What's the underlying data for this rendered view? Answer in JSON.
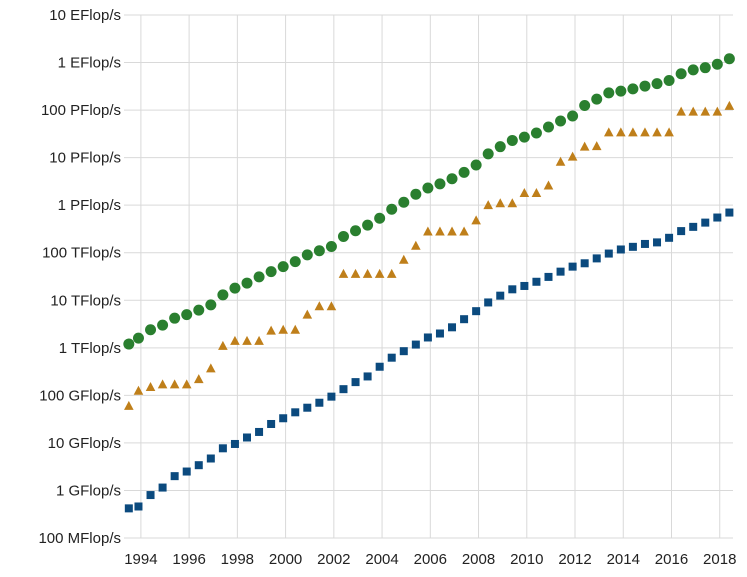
{
  "chart_data": {
    "type": "scatter",
    "title": "",
    "xlabel": "",
    "ylabel": "",
    "y_scale": "log",
    "y_unit": "Flop/s",
    "xlim": [
      1993.3,
      2018.55
    ],
    "ylim": [
      100000000.0,
      1e+19
    ],
    "grid": true,
    "legend": "none",
    "x_ticks": [
      1994,
      1996,
      1998,
      2000,
      2002,
      2004,
      2006,
      2008,
      2010,
      2012,
      2014,
      2016,
      2018
    ],
    "x_tick_labels": [
      "1994",
      "1996",
      "1998",
      "2000",
      "2002",
      "2004",
      "2006",
      "2008",
      "2010",
      "2012",
      "2014",
      "2016",
      "2018"
    ],
    "y_ticks": [
      100000000.0,
      1000000000.0,
      10000000000.0,
      100000000000.0,
      1000000000000.0,
      10000000000000.0,
      100000000000000.0,
      1000000000000000.0,
      1e+16,
      1e+17,
      1e+18,
      1e+19
    ],
    "y_tick_labels": [
      "100 MFlop/s",
      "1 GFlop/s",
      "10 GFlop/s",
      "100 GFlop/s",
      "1 TFlop/s",
      "10 TFlop/s",
      "100 TFlop/s",
      "1 PFlop/s",
      "10 PFlop/s",
      "100 PFlop/s",
      "1 EFlop/s",
      "10 EFlop/s"
    ],
    "series": [
      {
        "marker": "circle",
        "color": "#2a7f2f",
        "x": [
          1993.5,
          1993.9,
          1994.4,
          1994.9,
          1995.4,
          1995.9,
          1996.4,
          1996.9,
          1997.4,
          1997.9,
          1998.4,
          1998.9,
          1999.4,
          1999.9,
          2000.4,
          2000.9,
          2001.4,
          2001.9,
          2002.4,
          2002.9,
          2003.4,
          2003.9,
          2004.4,
          2004.9,
          2005.4,
          2005.9,
          2006.4,
          2006.9,
          2007.4,
          2007.9,
          2008.4,
          2008.9,
          2009.4,
          2009.9,
          2010.4,
          2010.9,
          2011.4,
          2011.9,
          2012.4,
          2012.9,
          2013.4,
          2013.9,
          2014.4,
          2014.9,
          2015.4,
          2015.9,
          2016.4,
          2016.9,
          2017.4,
          2017.9,
          2018.4
        ],
        "values": [
          1200000000000.0,
          1600000000000.0,
          2400000000000.0,
          3000000000000.0,
          4200000000000.0,
          5000000000000.0,
          6200000000000.0,
          8000000000000.0,
          13000000000000.0,
          18000000000000.0,
          23000000000000.0,
          31000000000000.0,
          40000000000000.0,
          51000000000000.0,
          65000000000000.0,
          90000000000000.0,
          110000000000000.0,
          135000000000000.0,
          220000000000000.0,
          290000000000000.0,
          380000000000000.0,
          530000000000000.0,
          820000000000000.0,
          1150000000000000.0,
          1700000000000000.0,
          2300000000000000.0,
          2800000000000000.0,
          3600000000000000.0,
          4900000000000000.0,
          7000000000000000.0,
          1.2e+16,
          1.7e+16,
          2.3e+16,
          2.7e+16,
          3.3e+16,
          4.4e+16,
          5.9e+16,
          7.5e+16,
          1.25e+17,
          1.7e+17,
          2.3e+17,
          2.5e+17,
          2.8e+17,
          3.2e+17,
          3.6e+17,
          4.2e+17,
          5.8e+17,
          7e+17,
          7.8e+17,
          9.2e+17,
          1.2e+18
        ]
      },
      {
        "marker": "triangle",
        "color": "#bf7f1a",
        "x": [
          1993.5,
          1993.9,
          1994.4,
          1994.9,
          1995.4,
          1995.9,
          1996.4,
          1996.9,
          1997.4,
          1997.9,
          1998.4,
          1998.9,
          1999.4,
          1999.9,
          2000.4,
          2000.9,
          2001.4,
          2001.9,
          2002.4,
          2002.9,
          2003.4,
          2003.9,
          2004.4,
          2004.9,
          2005.4,
          2005.9,
          2006.4,
          2006.9,
          2007.4,
          2007.9,
          2008.4,
          2008.9,
          2009.4,
          2009.9,
          2010.4,
          2010.9,
          2011.4,
          2011.9,
          2012.4,
          2012.9,
          2013.4,
          2013.9,
          2014.4,
          2014.9,
          2015.4,
          2015.9,
          2016.4,
          2016.9,
          2017.4,
          2017.9,
          2018.4
        ],
        "values": [
          60000000000.0,
          125000000000.0,
          150000000000.0,
          170000000000.0,
          170000000000.0,
          170000000000.0,
          220000000000.0,
          370000000000.0,
          1100000000000.0,
          1400000000000.0,
          1400000000000.0,
          1400000000000.0,
          2300000000000.0,
          2400000000000.0,
          2400000000000.0,
          5000000000000.0,
          7500000000000.0,
          7500000000000.0,
          36000000000000.0,
          36000000000000.0,
          36000000000000.0,
          36000000000000.0,
          36000000000000.0,
          71000000000000.0,
          140000000000000.0,
          280000000000000.0,
          280000000000000.0,
          280000000000000.0,
          280000000000000.0,
          480000000000000.0,
          1000000000000000.0,
          1100000000000000.0,
          1100000000000000.0,
          1800000000000000.0,
          1800000000000000.0,
          2600000000000000.0,
          8200000000000000.0,
          1.05e+16,
          1.7e+16,
          1.75e+16,
          3.4e+16,
          3.4e+16,
          3.4e+16,
          3.4e+16,
          3.4e+16,
          3.4e+16,
          9.3e+16,
          9.3e+16,
          9.3e+16,
          9.3e+16,
          1.23e+17
        ]
      },
      {
        "marker": "square",
        "color": "#0b4a7e",
        "x": [
          1993.5,
          1993.9,
          1994.4,
          1994.9,
          1995.4,
          1995.9,
          1996.4,
          1996.9,
          1997.4,
          1997.9,
          1998.4,
          1998.9,
          1999.4,
          1999.9,
          2000.4,
          2000.9,
          2001.4,
          2001.9,
          2002.4,
          2002.9,
          2003.4,
          2003.9,
          2004.4,
          2004.9,
          2005.4,
          2005.9,
          2006.4,
          2006.9,
          2007.4,
          2007.9,
          2008.4,
          2008.9,
          2009.4,
          2009.9,
          2010.4,
          2010.9,
          2011.4,
          2011.9,
          2012.4,
          2012.9,
          2013.4,
          2013.9,
          2014.4,
          2014.9,
          2015.4,
          2015.9,
          2016.4,
          2016.9,
          2017.4,
          2017.9,
          2018.4
        ],
        "values": [
          420000000.0,
          460000000.0,
          800000000.0,
          1150000000.0,
          2000000000.0,
          2500000000.0,
          3400000000.0,
          4700000000.0,
          7700000000.0,
          9500000000.0,
          13000000000.0,
          17000000000.0,
          25000000000.0,
          33000000000.0,
          44000000000.0,
          55000000000.0,
          70000000000.0,
          94000000000.0,
          135000000000.0,
          190000000000.0,
          250000000000.0,
          400000000000.0,
          620000000000.0,
          850000000000.0,
          1170000000000.0,
          1650000000000.0,
          2000000000000.0,
          2700000000000.0,
          4000000000000.0,
          5900000000000.0,
          9000000000000.0,
          12500000000000.0,
          17000000000000.0,
          20000000000000.0,
          24500000000000.0,
          31000000000000.0,
          40000000000000.0,
          51000000000000.0,
          60000000000000.0,
          76000000000000.0,
          96000000000000.0,
          117000000000000.0,
          133000000000000.0,
          153000000000000.0,
          165000000000000.0,
          206000000000000.0,
          285000000000000.0,
          350000000000000.0,
          430000000000000.0,
          550000000000000.0,
          700000000000000.0
        ]
      }
    ]
  }
}
